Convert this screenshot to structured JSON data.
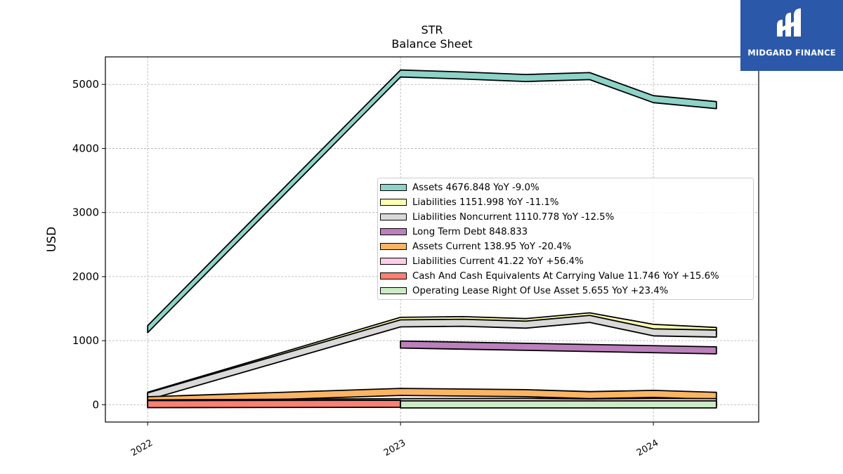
{
  "title": "STR",
  "subtitle": "Balance  Sheet",
  "logo": {
    "text": "MIDGARD FINANCE",
    "bg_color": "#2b58a8"
  },
  "chart_data": {
    "type": "area",
    "title": "STR",
    "subtitle": "Balance  Sheet",
    "ylabel": "USD",
    "xlabel": "",
    "x_ticks": [
      "2022",
      "2023",
      "2024"
    ],
    "y_ticks": [
      0,
      1000,
      2000,
      3000,
      4000,
      5000
    ],
    "xlim": [
      "2021-11-01",
      "2024-06-01"
    ],
    "ylim": [
      -270,
      5430
    ],
    "grid": true,
    "legend_position": "center-right",
    "series": [
      {
        "name": "Assets",
        "legend": "Assets  4676.848 YoY -9.0%",
        "color": "#8dd3c7",
        "x": [
          "2022-01-01",
          "2023-01-01",
          "2023-04-01",
          "2023-07-01",
          "2023-10-01",
          "2024-01-01",
          "2024-04-01"
        ],
        "values": [
          1180,
          5170,
          5140,
          5100,
          5130,
          4770,
          4676.848
        ]
      },
      {
        "name": "Liabilities",
        "legend": "Liabilities  1151.998 YoY -11.1%",
        "color": "#ffffb3",
        "x": [
          "2022-01-01",
          "2023-01-01",
          "2023-04-01",
          "2023-07-01",
          "2023-10-01",
          "2024-01-01",
          "2024-04-01"
        ],
        "values": [
          140,
          1310,
          1320,
          1290,
          1380,
          1200,
          1151.998
        ]
      },
      {
        "name": "Liabilities Noncurrent",
        "legend": "Liabilities Noncurrent  1110.778 YoY -12.5%",
        "color": "#d9d9d9",
        "x": [
          "2022-01-01",
          "2023-01-01",
          "2023-04-01",
          "2023-07-01",
          "2023-10-01",
          "2024-01-01",
          "2024-04-01"
        ],
        "values": [
          130,
          1270,
          1280,
          1250,
          1340,
          1130,
          1110.778
        ]
      },
      {
        "name": "Long Term Debt",
        "legend": "Long Term Debt  848.833",
        "color": "#bc80bd",
        "x": [
          "2023-01-01",
          "2024-04-01"
        ],
        "values": [
          940,
          848.833
        ]
      },
      {
        "name": "Assets Current",
        "legend": "Assets Current  138.95 YoY -20.4%",
        "color": "#fdb462",
        "x": [
          "2022-01-01",
          "2023-01-01",
          "2023-07-01",
          "2023-10-01",
          "2024-01-01",
          "2024-04-01"
        ],
        "values": [
          70,
          200,
          180,
          150,
          170,
          138.95
        ]
      },
      {
        "name": "Liabilities Current",
        "legend": "Liabilities Current  41.22 YoY +56.4%",
        "color": "#fccde5",
        "x": [
          "2022-01-01",
          "2023-01-01",
          "2023-07-01",
          "2023-10-01",
          "2024-01-01",
          "2024-04-01"
        ],
        "values": [
          20,
          40,
          45,
          35,
          45,
          41.22
        ]
      },
      {
        "name": "Cash And Cash Equivalents At Carrying Value",
        "legend": "Cash And Cash Equivalents At Carrying Value  11.746 YoY +15.6%",
        "color": "#fb8072",
        "x": [
          "2022-01-01",
          "2023-01-01"
        ],
        "values": [
          10,
          15
        ]
      },
      {
        "name": "Operating Lease Right Of Use Asset",
        "legend": "Operating Lease Right Of Use Asset  5.655 YoY +23.4%",
        "color": "#ccebc5",
        "x": [
          "2023-01-01",
          "2024-04-01"
        ],
        "values": [
          5,
          5.655
        ]
      }
    ]
  }
}
